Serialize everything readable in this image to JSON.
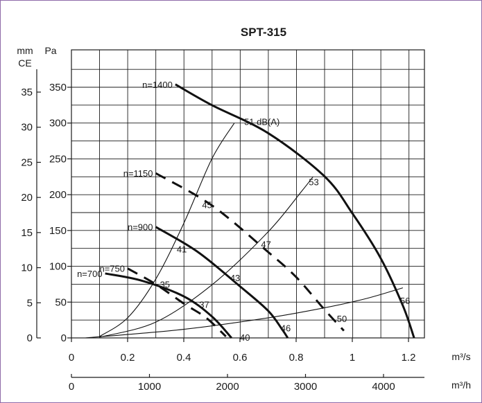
{
  "chart_data": {
    "type": "line",
    "title": "SPT-315",
    "x_unit": "m³/s",
    "x2_unit": "m³/h",
    "y_unit": "Pa",
    "y2_unit_line1": "mm",
    "y2_unit_line2": "CE",
    "xlim": [
      0,
      1.2
    ],
    "ylim": [
      0,
      350
    ],
    "x_ticks": [
      "0",
      "0.2",
      "0.4",
      "0.6",
      "0.8",
      "1",
      "1.2"
    ],
    "x2_ticks": [
      "0",
      "1000",
      "2000",
      "3000",
      "4000"
    ],
    "y_ticks": [
      "0",
      "50",
      "100",
      "150",
      "200",
      "250",
      "300",
      "350"
    ],
    "y2_ticks": [
      "0",
      "5",
      "10",
      "15",
      "20",
      "25",
      "30",
      "35"
    ],
    "fan_curves": [
      {
        "name": "n=1400",
        "style": "solid",
        "x": [
          0.37,
          0.5,
          0.7,
          0.9,
          1.0,
          1.1,
          1.18,
          1.22
        ],
        "y": [
          354,
          325,
          286,
          226,
          174,
          112,
          45,
          0
        ]
      },
      {
        "name": "n=1150",
        "style": "dashed",
        "x": [
          0.3,
          0.5,
          0.7,
          0.8,
          0.9,
          0.97
        ],
        "y": [
          230,
          185,
          120,
          85,
          40,
          10
        ]
      },
      {
        "name": "n=900",
        "style": "solid",
        "x": [
          0.3,
          0.45,
          0.6,
          0.7,
          0.75,
          0.77
        ],
        "y": [
          155,
          120,
          72,
          38,
          12,
          0
        ]
      },
      {
        "name": "n=750",
        "style": "dashed",
        "x": [
          0.2,
          0.3,
          0.4,
          0.48,
          0.55
        ],
        "y": [
          97,
          75,
          48,
          28,
          2
        ]
      },
      {
        "name": "n=700",
        "style": "solid",
        "x": [
          0.12,
          0.25,
          0.4,
          0.5,
          0.57
        ],
        "y": [
          90,
          80,
          58,
          30,
          0
        ]
      }
    ],
    "noise_curves": [
      {
        "x": [
          0.1,
          0.2,
          0.3,
          0.4,
          0.5,
          0.58
        ],
        "y": [
          2,
          28,
          82,
          160,
          250,
          300
        ]
      },
      {
        "x": [
          0.1,
          0.3,
          0.5,
          0.7,
          0.82,
          0.86
        ],
        "y": [
          1,
          22,
          74,
          148,
          205,
          225
        ]
      },
      {
        "x": [
          0.05,
          0.4,
          0.7,
          0.9,
          1.05,
          1.18
        ],
        "y": [
          0,
          12,
          28,
          42,
          55,
          70
        ]
      }
    ],
    "annotations": [
      {
        "text": "51 dB(A)",
        "x": 0.615,
        "y": 302
      },
      {
        "text": "53",
        "x": 0.845,
        "y": 218
      },
      {
        "text": "45",
        "x": 0.465,
        "y": 186
      },
      {
        "text": "47",
        "x": 0.675,
        "y": 131
      },
      {
        "text": "41",
        "x": 0.375,
        "y": 124
      },
      {
        "text": "43",
        "x": 0.565,
        "y": 84
      },
      {
        "text": "35",
        "x": 0.315,
        "y": 75
      },
      {
        "text": "37",
        "x": 0.455,
        "y": 47
      },
      {
        "text": "56",
        "x": 1.17,
        "y": 52
      },
      {
        "text": "50",
        "x": 0.945,
        "y": 27
      },
      {
        "text": "46",
        "x": 0.745,
        "y": 14
      },
      {
        "text": "40",
        "x": 0.6,
        "y": 1
      }
    ]
  }
}
